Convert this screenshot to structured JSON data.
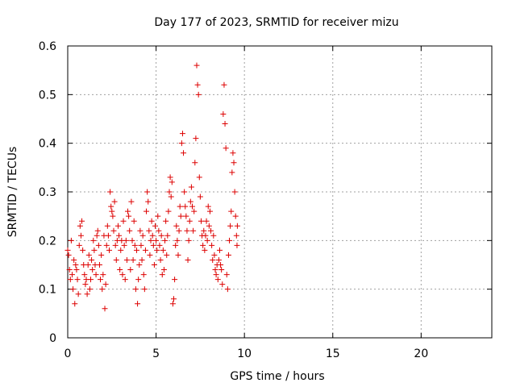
{
  "chart_data": {
    "type": "scatter",
    "title": "Day 177 of 2023, SRMTID for receiver mizu",
    "xlabel": "GPS time / hours",
    "ylabel": "SRMTID / TECUs",
    "xlim": [
      0,
      24
    ],
    "ylim": [
      0,
      0.6
    ],
    "x_ticks": [
      0,
      5,
      10,
      15,
      20
    ],
    "y_ticks": [
      0,
      0.1,
      0.2,
      0.3,
      0.4,
      0.5,
      0.6
    ],
    "x_tick_labels": [
      "0",
      "5",
      "10",
      "15",
      "20"
    ],
    "y_tick_labels": [
      "0",
      "0.1",
      "0.2",
      "0.3",
      "0.4",
      "0.5",
      "0.6"
    ],
    "grid": true,
    "marker": "+",
    "series": [
      {
        "name": "SRMTID",
        "color": "#dd0000",
        "points": [
          [
            0.0,
            0.18
          ],
          [
            0.05,
            0.17
          ],
          [
            0.1,
            0.14
          ],
          [
            0.15,
            0.12
          ],
          [
            0.2,
            0.2
          ],
          [
            0.25,
            0.13
          ],
          [
            0.3,
            0.1
          ],
          [
            0.35,
            0.16
          ],
          [
            0.4,
            0.07
          ],
          [
            0.45,
            0.15
          ],
          [
            0.5,
            0.14
          ],
          [
            0.55,
            0.12
          ],
          [
            0.6,
            0.09
          ],
          [
            0.65,
            0.19
          ],
          [
            0.7,
            0.23
          ],
          [
            0.75,
            0.21
          ],
          [
            0.8,
            0.24
          ],
          [
            0.85,
            0.18
          ],
          [
            0.9,
            0.15
          ],
          [
            0.95,
            0.13
          ],
          [
            1.0,
            0.11
          ],
          [
            1.05,
            0.12
          ],
          [
            1.1,
            0.09
          ],
          [
            1.15,
            0.15
          ],
          [
            1.2,
            0.17
          ],
          [
            1.25,
            0.1
          ],
          [
            1.3,
            0.12
          ],
          [
            1.35,
            0.16
          ],
          [
            1.4,
            0.14
          ],
          [
            1.45,
            0.2
          ],
          [
            1.5,
            0.18
          ],
          [
            1.55,
            0.15
          ],
          [
            1.6,
            0.13
          ],
          [
            1.65,
            0.21
          ],
          [
            1.7,
            0.22
          ],
          [
            1.75,
            0.19
          ],
          [
            1.8,
            0.15
          ],
          [
            1.85,
            0.12
          ],
          [
            1.9,
            0.17
          ],
          [
            1.95,
            0.1
          ],
          [
            2.0,
            0.13
          ],
          [
            2.05,
            0.21
          ],
          [
            2.1,
            0.06
          ],
          [
            2.15,
            0.11
          ],
          [
            2.2,
            0.19
          ],
          [
            2.25,
            0.23
          ],
          [
            2.3,
            0.21
          ],
          [
            2.35,
            0.18
          ],
          [
            2.4,
            0.3
          ],
          [
            2.45,
            0.27
          ],
          [
            2.5,
            0.26
          ],
          [
            2.55,
            0.25
          ],
          [
            2.6,
            0.22
          ],
          [
            2.65,
            0.28
          ],
          [
            2.7,
            0.19
          ],
          [
            2.75,
            0.16
          ],
          [
            2.8,
            0.2
          ],
          [
            2.85,
            0.23
          ],
          [
            2.9,
            0.21
          ],
          [
            2.95,
            0.14
          ],
          [
            3.0,
            0.18
          ],
          [
            3.05,
            0.2
          ],
          [
            3.1,
            0.13
          ],
          [
            3.15,
            0.24
          ],
          [
            3.2,
            0.19
          ],
          [
            3.25,
            0.12
          ],
          [
            3.3,
            0.2
          ],
          [
            3.35,
            0.16
          ],
          [
            3.4,
            0.26
          ],
          [
            3.45,
            0.25
          ],
          [
            3.5,
            0.22
          ],
          [
            3.55,
            0.14
          ],
          [
            3.6,
            0.28
          ],
          [
            3.65,
            0.2
          ],
          [
            3.7,
            0.16
          ],
          [
            3.75,
            0.24
          ],
          [
            3.8,
            0.19
          ],
          [
            3.85,
            0.1
          ],
          [
            3.9,
            0.18
          ],
          [
            3.95,
            0.07
          ],
          [
            4.0,
            0.12
          ],
          [
            4.05,
            0.15
          ],
          [
            4.1,
            0.22
          ],
          [
            4.15,
            0.19
          ],
          [
            4.2,
            0.16
          ],
          [
            4.25,
            0.21
          ],
          [
            4.3,
            0.13
          ],
          [
            4.35,
            0.1
          ],
          [
            4.4,
            0.18
          ],
          [
            4.45,
            0.26
          ],
          [
            4.5,
            0.3
          ],
          [
            4.55,
            0.28
          ],
          [
            4.6,
            0.22
          ],
          [
            4.65,
            0.17
          ],
          [
            4.7,
            0.2
          ],
          [
            4.75,
            0.24
          ],
          [
            4.8,
            0.21
          ],
          [
            4.85,
            0.19
          ],
          [
            4.9,
            0.15
          ],
          [
            4.95,
            0.23
          ],
          [
            5.0,
            0.2
          ],
          [
            5.05,
            0.18
          ],
          [
            5.1,
            0.25
          ],
          [
            5.15,
            0.22
          ],
          [
            5.2,
            0.19
          ],
          [
            5.25,
            0.16
          ],
          [
            5.3,
            0.21
          ],
          [
            5.35,
            0.13
          ],
          [
            5.4,
            0.18
          ],
          [
            5.45,
            0.14
          ],
          [
            5.5,
            0.2
          ],
          [
            5.55,
            0.24
          ],
          [
            5.6,
            0.17
          ],
          [
            5.65,
            0.21
          ],
          [
            5.7,
            0.26
          ],
          [
            5.75,
            0.3
          ],
          [
            5.8,
            0.33
          ],
          [
            5.85,
            0.29
          ],
          [
            5.9,
            0.32
          ],
          [
            5.95,
            0.07
          ],
          [
            6.0,
            0.08
          ],
          [
            6.05,
            0.12
          ],
          [
            6.1,
            0.19
          ],
          [
            6.15,
            0.23
          ],
          [
            6.2,
            0.2
          ],
          [
            6.25,
            0.17
          ],
          [
            6.3,
            0.22
          ],
          [
            6.35,
            0.27
          ],
          [
            6.4,
            0.25
          ],
          [
            6.45,
            0.4
          ],
          [
            6.5,
            0.42
          ],
          [
            6.55,
            0.38
          ],
          [
            6.6,
            0.3
          ],
          [
            6.65,
            0.27
          ],
          [
            6.7,
            0.25
          ],
          [
            6.75,
            0.22
          ],
          [
            6.8,
            0.16
          ],
          [
            6.85,
            0.2
          ],
          [
            6.9,
            0.24
          ],
          [
            6.95,
            0.28
          ],
          [
            7.0,
            0.31
          ],
          [
            7.05,
            0.27
          ],
          [
            7.1,
            0.22
          ],
          [
            7.15,
            0.26
          ],
          [
            7.2,
            0.36
          ],
          [
            7.25,
            0.41
          ],
          [
            7.3,
            0.56
          ],
          [
            7.35,
            0.52
          ],
          [
            7.4,
            0.5
          ],
          [
            7.45,
            0.33
          ],
          [
            7.5,
            0.29
          ],
          [
            7.55,
            0.24
          ],
          [
            7.6,
            0.21
          ],
          [
            7.65,
            0.19
          ],
          [
            7.7,
            0.22
          ],
          [
            7.75,
            0.18
          ],
          [
            7.8,
            0.21
          ],
          [
            7.85,
            0.24
          ],
          [
            7.9,
            0.2
          ],
          [
            7.95,
            0.27
          ],
          [
            8.0,
            0.23
          ],
          [
            8.05,
            0.26
          ],
          [
            8.1,
            0.22
          ],
          [
            8.15,
            0.19
          ],
          [
            8.2,
            0.16
          ],
          [
            8.25,
            0.21
          ],
          [
            8.3,
            0.17
          ],
          [
            8.35,
            0.14
          ],
          [
            8.4,
            0.13
          ],
          [
            8.45,
            0.15
          ],
          [
            8.5,
            0.12
          ],
          [
            8.55,
            0.16
          ],
          [
            8.6,
            0.18
          ],
          [
            8.65,
            0.15
          ],
          [
            8.7,
            0.14
          ],
          [
            8.75,
            0.11
          ],
          [
            8.8,
            0.46
          ],
          [
            8.85,
            0.52
          ],
          [
            8.9,
            0.44
          ],
          [
            8.95,
            0.39
          ],
          [
            9.0,
            0.13
          ],
          [
            9.05,
            0.1
          ],
          [
            9.1,
            0.17
          ],
          [
            9.15,
            0.2
          ],
          [
            9.2,
            0.23
          ],
          [
            9.25,
            0.26
          ],
          [
            9.3,
            0.34
          ],
          [
            9.35,
            0.38
          ],
          [
            9.4,
            0.36
          ],
          [
            9.45,
            0.3
          ],
          [
            9.5,
            0.25
          ],
          [
            9.55,
            0.21
          ],
          [
            9.58,
            0.19
          ],
          [
            9.6,
            0.23
          ]
        ]
      }
    ]
  }
}
